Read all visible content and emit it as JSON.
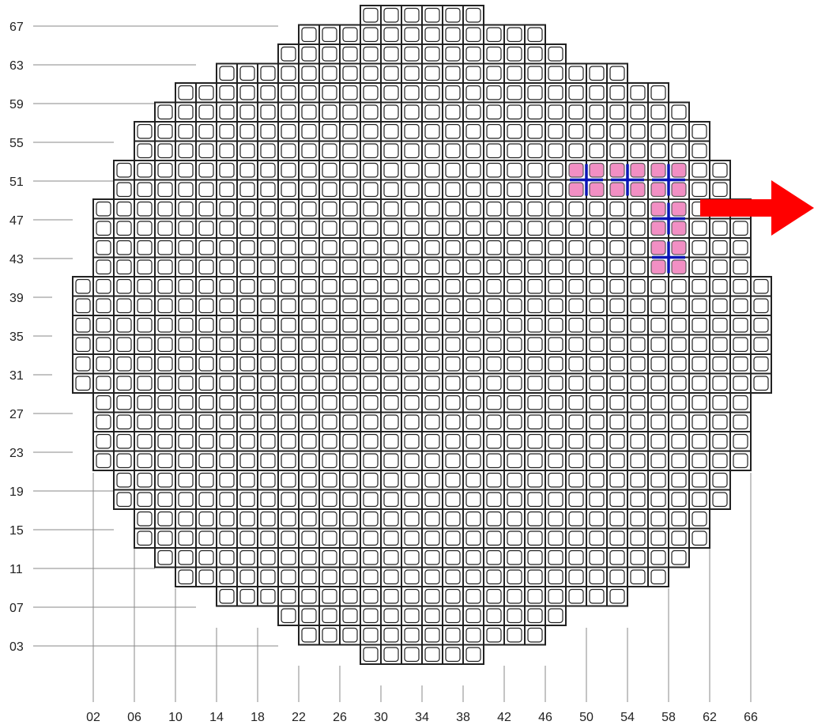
{
  "core_map": {
    "row_labels": [
      "67",
      "63",
      "59",
      "55",
      "51",
      "47",
      "43",
      "39",
      "35",
      "31",
      "27",
      "23",
      "19",
      "15",
      "11",
      "07",
      "03"
    ],
    "col_labels": [
      "02",
      "06",
      "10",
      "14",
      "18",
      "22",
      "26",
      "30",
      "34",
      "38",
      "42",
      "46",
      "50",
      "54",
      "58",
      "62",
      "66"
    ],
    "highlighted_cells": [
      {
        "col": "50",
        "row": "51"
      },
      {
        "col": "54",
        "row": "51"
      },
      {
        "col": "58",
        "row": "51"
      },
      {
        "col": "58",
        "row": "47"
      },
      {
        "col": "58",
        "row": "43"
      }
    ],
    "colors": {
      "highlight_fill": "#f28fc4",
      "highlight_cross": "#0a14b4",
      "arrow": "#ff0000",
      "grid": "#222222"
    },
    "arrow_icon": "right-arrow-icon"
  }
}
